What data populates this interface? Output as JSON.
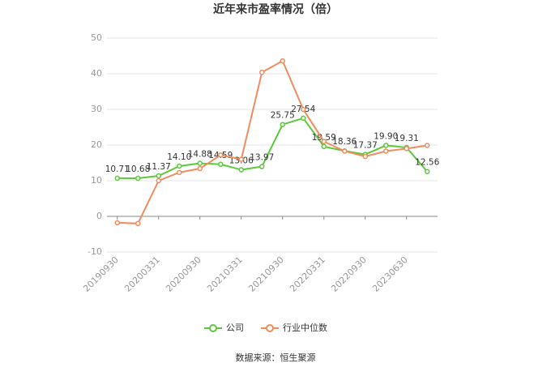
{
  "chart_data": {
    "type": "line",
    "title": "近年来市盈率情况（倍）",
    "categories": [
      "20190930",
      null,
      "20200331",
      null,
      "20200930",
      null,
      "20210331",
      null,
      "20210930",
      null,
      "20220331",
      null,
      "20220930",
      null,
      "20230630",
      null
    ],
    "series": [
      {
        "name": "公司",
        "color": "#5cc93b",
        "values": [
          10.71,
          10.68,
          11.37,
          14.1,
          14.88,
          14.59,
          13.06,
          13.97,
          25.75,
          27.54,
          19.59,
          18.36,
          17.37,
          19.9,
          19.31,
          12.56
        ],
        "value_labels": [
          "10.71",
          "10.68",
          "11.37",
          "14.10",
          "14.88",
          "14.59",
          "13.06",
          "13.97",
          "25.75",
          "27.54",
          "19.59",
          "18.36",
          "17.37",
          "19.90",
          "19.31",
          "12.56"
        ]
      },
      {
        "name": "行业中位数",
        "color": "#f28b5e",
        "values": [
          -1.8,
          -2.0,
          10.0,
          12.3,
          13.4,
          17.2,
          16.0,
          40.4,
          43.6,
          30.0,
          21.0,
          18.3,
          16.8,
          18.3,
          19.0,
          19.9
        ]
      }
    ],
    "ylim": [
      -10,
      50
    ],
    "yticks": [
      -10,
      0,
      10,
      20,
      30,
      40,
      50
    ],
    "grid": true,
    "legend": "bottom",
    "source": "数据来源：恒生聚源"
  }
}
